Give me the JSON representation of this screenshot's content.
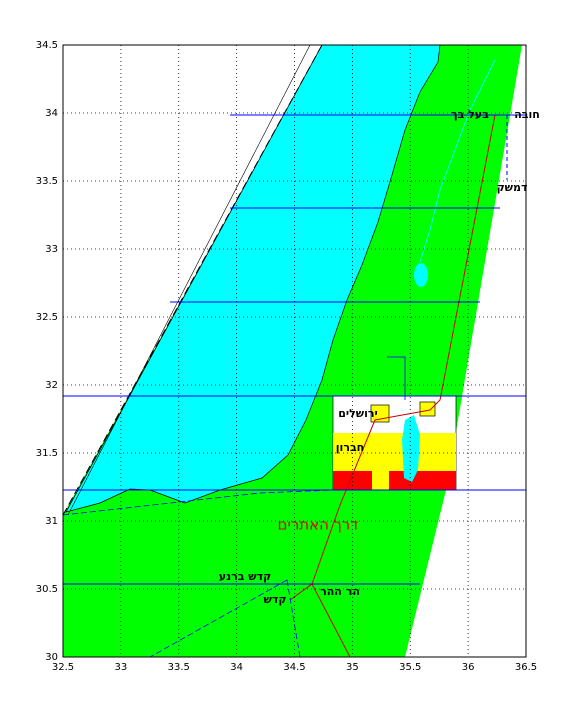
{
  "map": {
    "xlim": [
      32.5,
      36.5
    ],
    "ylim": [
      30,
      34.5
    ],
    "xticks": [
      32.5,
      33,
      33.5,
      34,
      34.5,
      35,
      35.5,
      36,
      36.5
    ],
    "yticks": [
      30,
      30.5,
      31,
      31.5,
      32,
      32.5,
      33,
      33.5,
      34,
      34.5
    ],
    "labels": [
      "חובה",
      "בעל בך",
      "דמשק",
      "ירושלים",
      "חברון",
      "דרך האתרים",
      "קדש ברנע",
      "הר ההר",
      "קדש"
    ]
  }
}
